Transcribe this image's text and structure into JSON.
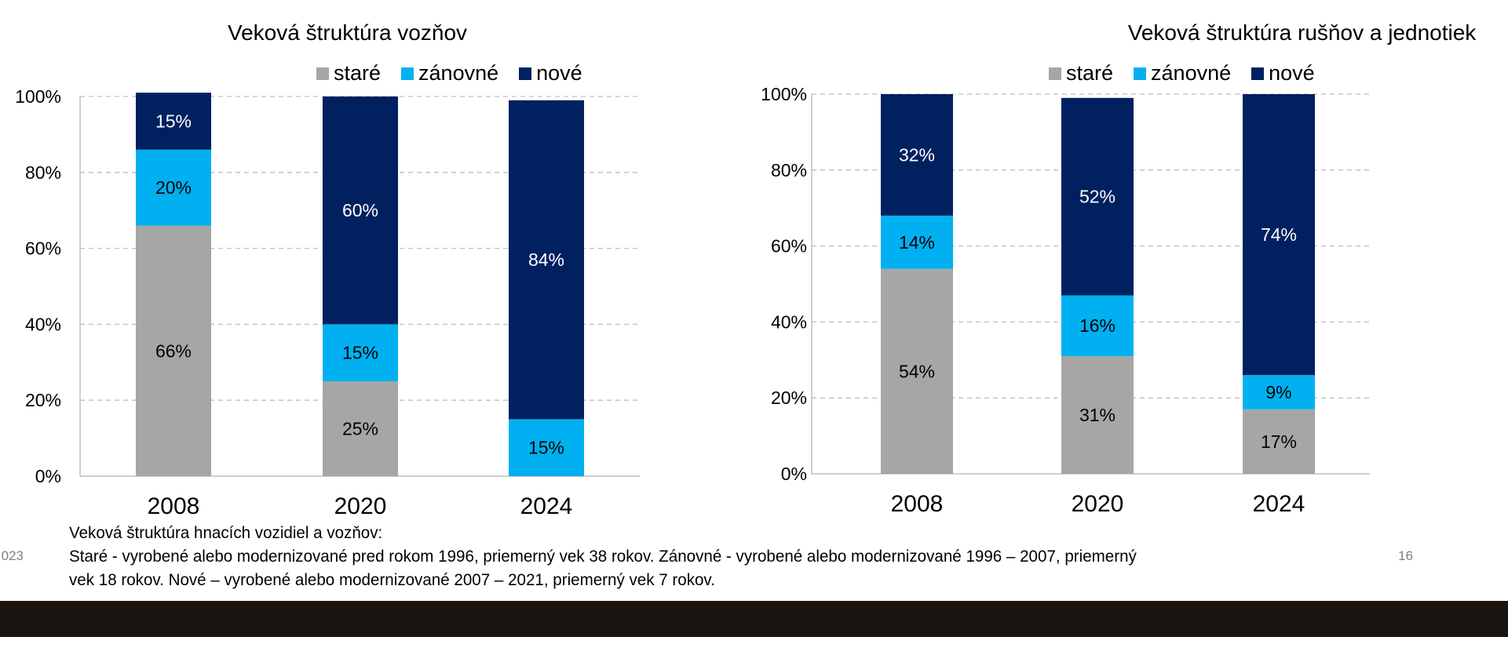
{
  "colors": {
    "old": "#a6a6a6",
    "renovated": "#00b0f0",
    "new": "#002060",
    "grid": "#bfbfbf",
    "footer_bar": "#1a1410"
  },
  "legend": [
    "staré",
    "zánovné",
    "nové"
  ],
  "chart_data": [
    {
      "type": "bar",
      "stacked": true,
      "title": "Veková štruktúra vozňov",
      "categories": [
        "2008",
        "2020",
        "2024"
      ],
      "series": [
        {
          "name": "staré",
          "values": [
            66,
            25,
            0
          ]
        },
        {
          "name": "zánovné",
          "values": [
            20,
            15,
            15
          ]
        },
        {
          "name": "nové",
          "values": [
            15,
            60,
            84
          ]
        }
      ],
      "data_labels": [
        [
          "66%",
          "25%",
          ""
        ],
        [
          "20%",
          "15%",
          "15%"
        ],
        [
          "15%",
          "60%",
          "84%"
        ]
      ],
      "yticks": [
        "0%",
        "20%",
        "40%",
        "60%",
        "80%",
        "100%"
      ],
      "ylim": [
        0,
        100
      ],
      "grid": true,
      "legend_position": "top"
    },
    {
      "type": "bar",
      "stacked": true,
      "title": "Veková štruktúra rušňov a jednotiek",
      "categories": [
        "2008",
        "2020",
        "2024"
      ],
      "series": [
        {
          "name": "staré",
          "values": [
            54,
            31,
            17
          ]
        },
        {
          "name": "zánovné",
          "values": [
            14,
            16,
            9
          ]
        },
        {
          "name": "nové",
          "values": [
            32,
            52,
            74
          ]
        }
      ],
      "data_labels": [
        [
          "54%",
          "31%",
          "17%"
        ],
        [
          "14%",
          "16%",
          "9%"
        ],
        [
          "32%",
          "52%",
          "74%"
        ]
      ],
      "yticks": [
        "0%",
        "20%",
        "40%",
        "60%",
        "80%",
        "100%"
      ],
      "ylim": [
        0,
        100
      ],
      "grid": true,
      "legend_position": "top"
    }
  ],
  "note": {
    "heading": "Veková štruktúra hnacích vozidiel a vozňov:",
    "line1": "Staré - vyrobené alebo modernizované pred rokom 1996, priemerný vek 38 rokov. Zánovné - vyrobené alebo modernizované 1996 – 2007, priemerný",
    "line2": "vek 18 rokov. Nové – vyrobené alebo modernizované 2007 – 2021, priemerný vek 7 rokov."
  },
  "page_number": "16",
  "left_edge_text": "023"
}
